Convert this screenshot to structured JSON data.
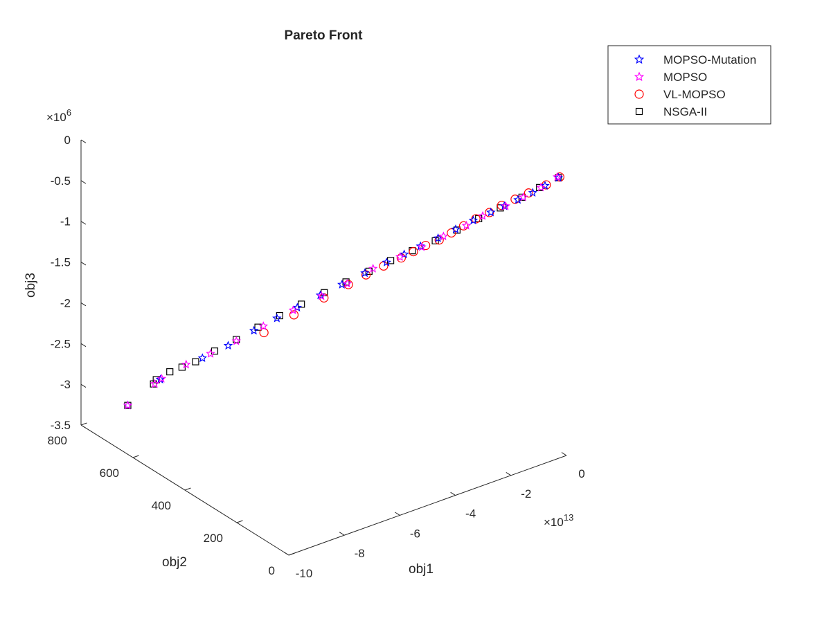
{
  "chart_data": {
    "type": "scatter",
    "title": "Pareto Front",
    "xlabel": "obj1",
    "ylabel": "obj2",
    "zlabel": "obj3",
    "x_exponent_label": "×10",
    "x_exponent_power": "13",
    "z_exponent_label": "×10",
    "z_exponent_power": "6",
    "xlim": [
      -10,
      0
    ],
    "ylim": [
      0,
      800
    ],
    "zlim": [
      -3.5,
      0
    ],
    "x_ticks": [
      "-10",
      "-8",
      "-6",
      "-4",
      "-2",
      "0"
    ],
    "y_ticks": [
      "0",
      "200",
      "400",
      "600",
      "800"
    ],
    "z_ticks": [
      "-3.5",
      "-3",
      "-2.5",
      "-2",
      "-1.5",
      "-1",
      "-0.5",
      "0"
    ],
    "grid": false,
    "legend_position": "top-right",
    "series": [
      {
        "name": "MOPSO-Mutation",
        "marker": "star",
        "color": "#0000ff",
        "points": [
          [
            -0.1,
            20,
            -0.12
          ],
          [
            -0.4,
            40,
            -0.22
          ],
          [
            -0.7,
            55,
            -0.3
          ],
          [
            -1.0,
            80,
            -0.4
          ],
          [
            -1.3,
            100,
            -0.48
          ],
          [
            -1.6,
            120,
            -0.56
          ],
          [
            -2.0,
            145,
            -0.66
          ],
          [
            -2.4,
            170,
            -0.77
          ],
          [
            -2.8,
            195,
            -0.88
          ],
          [
            -3.2,
            220,
            -0.98
          ],
          [
            -3.6,
            240,
            -1.07
          ],
          [
            -4.0,
            265,
            -1.17
          ],
          [
            -4.5,
            295,
            -1.3
          ],
          [
            -5.0,
            330,
            -1.45
          ],
          [
            -5.5,
            360,
            -1.58
          ],
          [
            -6.0,
            395,
            -1.74
          ],
          [
            -6.5,
            420,
            -1.86
          ],
          [
            -7.0,
            455,
            -2.02
          ],
          [
            -7.6,
            490,
            -2.2
          ],
          [
            -8.2,
            525,
            -2.35
          ],
          [
            -9.2,
            580,
            -2.6
          ],
          [
            -10.0,
            620,
            -2.9
          ]
        ]
      },
      {
        "name": "MOPSO",
        "marker": "star",
        "color": "#ff00ff",
        "points": [
          [
            -0.1,
            25,
            -0.12
          ],
          [
            -0.5,
            45,
            -0.24
          ],
          [
            -0.9,
            70,
            -0.36
          ],
          [
            -1.3,
            95,
            -0.47
          ],
          [
            -1.8,
            130,
            -0.6
          ],
          [
            -2.2,
            150,
            -0.71
          ],
          [
            -2.7,
            185,
            -0.85
          ],
          [
            -3.2,
            215,
            -0.98
          ],
          [
            -3.7,
            245,
            -1.1
          ],
          [
            -4.3,
            285,
            -1.25
          ],
          [
            -4.9,
            320,
            -1.43
          ],
          [
            -5.5,
            355,
            -1.58
          ],
          [
            -6.1,
            400,
            -1.77
          ],
          [
            -6.8,
            440,
            -1.96
          ],
          [
            -7.4,
            480,
            -2.15
          ],
          [
            -8.0,
            515,
            -2.3
          ],
          [
            -8.6,
            545,
            -2.42
          ],
          [
            -9.2,
            575,
            -2.58
          ],
          [
            -9.4,
            580,
            -2.63
          ],
          [
            -10.0,
            620,
            -2.9
          ]
        ]
      },
      {
        "name": "VL-MOPSO",
        "marker": "circle",
        "color": "#ff0000",
        "points": [
          [
            -0.1,
            15,
            -0.1
          ],
          [
            -0.4,
            35,
            -0.2
          ],
          [
            -0.8,
            60,
            -0.3
          ],
          [
            -1.1,
            80,
            -0.38
          ],
          [
            -1.4,
            100,
            -0.46
          ],
          [
            -1.7,
            115,
            -0.54
          ],
          [
            -2.0,
            135,
            -0.62
          ],
          [
            -2.3,
            150,
            -0.7
          ],
          [
            -2.6,
            165,
            -0.78
          ],
          [
            -2.9,
            180,
            -0.86
          ],
          [
            -3.2,
            200,
            -0.93
          ],
          [
            -3.5,
            215,
            -1.0
          ],
          [
            -3.8,
            230,
            -1.07
          ],
          [
            -4.2,
            255,
            -1.17
          ],
          [
            -4.6,
            280,
            -1.28
          ],
          [
            -5.0,
            305,
            -1.4
          ],
          [
            -5.6,
            335,
            -1.55
          ],
          [
            -6.4,
            365,
            -1.72
          ],
          [
            -7.2,
            395,
            -1.9
          ]
        ]
      },
      {
        "name": "NSGA-II",
        "marker": "square",
        "color": "#000000",
        "points": [
          [
            -0.1,
            20,
            -0.12
          ],
          [
            -0.5,
            50,
            -0.25
          ],
          [
            -0.9,
            75,
            -0.37
          ],
          [
            -1.4,
            105,
            -0.5
          ],
          [
            -1.9,
            135,
            -0.63
          ],
          [
            -2.4,
            165,
            -0.77
          ],
          [
            -2.9,
            195,
            -0.9
          ],
          [
            -3.4,
            230,
            -1.03
          ],
          [
            -3.9,
            260,
            -1.15
          ],
          [
            -4.4,
            290,
            -1.28
          ],
          [
            -4.9,
            325,
            -1.42
          ],
          [
            -5.4,
            355,
            -1.55
          ],
          [
            -5.9,
            390,
            -1.7
          ],
          [
            -6.4,
            420,
            -1.84
          ],
          [
            -6.9,
            450,
            -1.98
          ],
          [
            -7.4,
            480,
            -2.13
          ],
          [
            -7.9,
            510,
            -2.27
          ],
          [
            -8.4,
            530,
            -2.38
          ],
          [
            -8.7,
            550,
            -2.45
          ],
          [
            -9.0,
            565,
            -2.5
          ],
          [
            -9.3,
            585,
            -2.6
          ],
          [
            -9.4,
            585,
            -2.64
          ],
          [
            -10.0,
            620,
            -2.9
          ]
        ]
      }
    ]
  }
}
